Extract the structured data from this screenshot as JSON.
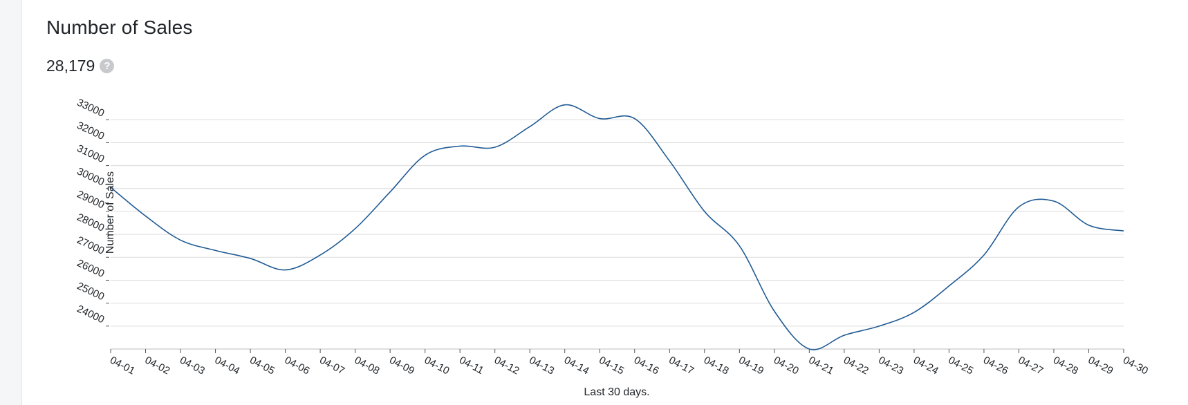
{
  "card": {
    "title": "Number of Sales",
    "kpi_value": "28,179",
    "help_icon": "question-circle-icon"
  },
  "chart_data": {
    "type": "line",
    "title": "",
    "xlabel": "Last 30 days.",
    "ylabel": "Number of Sales",
    "ylim": [
      23000,
      33700
    ],
    "y_ticks": [
      24000,
      25000,
      26000,
      27000,
      28000,
      29000,
      30000,
      31000,
      32000,
      33000
    ],
    "y_tick_labels": [
      "24000",
      "25000",
      "26000",
      "27000",
      "28000",
      "29000",
      "30000",
      "31000",
      "32000",
      "33000"
    ],
    "categories": [
      "04-01",
      "04-02",
      "04-03",
      "04-04",
      "04-05",
      "04-06",
      "04-07",
      "04-08",
      "04-09",
      "04-10",
      "04-11",
      "04-12",
      "04-13",
      "04-14",
      "04-15",
      "04-16",
      "04-17",
      "04-18",
      "04-19",
      "04-20",
      "04-21",
      "04-22",
      "04-23",
      "04-24",
      "04-25",
      "04-26",
      "04-27",
      "04-28",
      "04-29",
      "04-30"
    ],
    "series": [
      {
        "values": [
          30050,
          28800,
          27750,
          27300,
          26950,
          26450,
          27100,
          28250,
          29850,
          31450,
          31850,
          31800,
          32700,
          33650,
          33050,
          33050,
          31200,
          29000,
          27500,
          24650,
          23000,
          23600,
          24000,
          24600,
          25750,
          27100,
          29200,
          29450,
          28400,
          28150
        ],
        "color": "#1f5a94"
      }
    ],
    "grid": true,
    "line_color": "#1f5a94",
    "grid_color": "#dcdcdc"
  }
}
